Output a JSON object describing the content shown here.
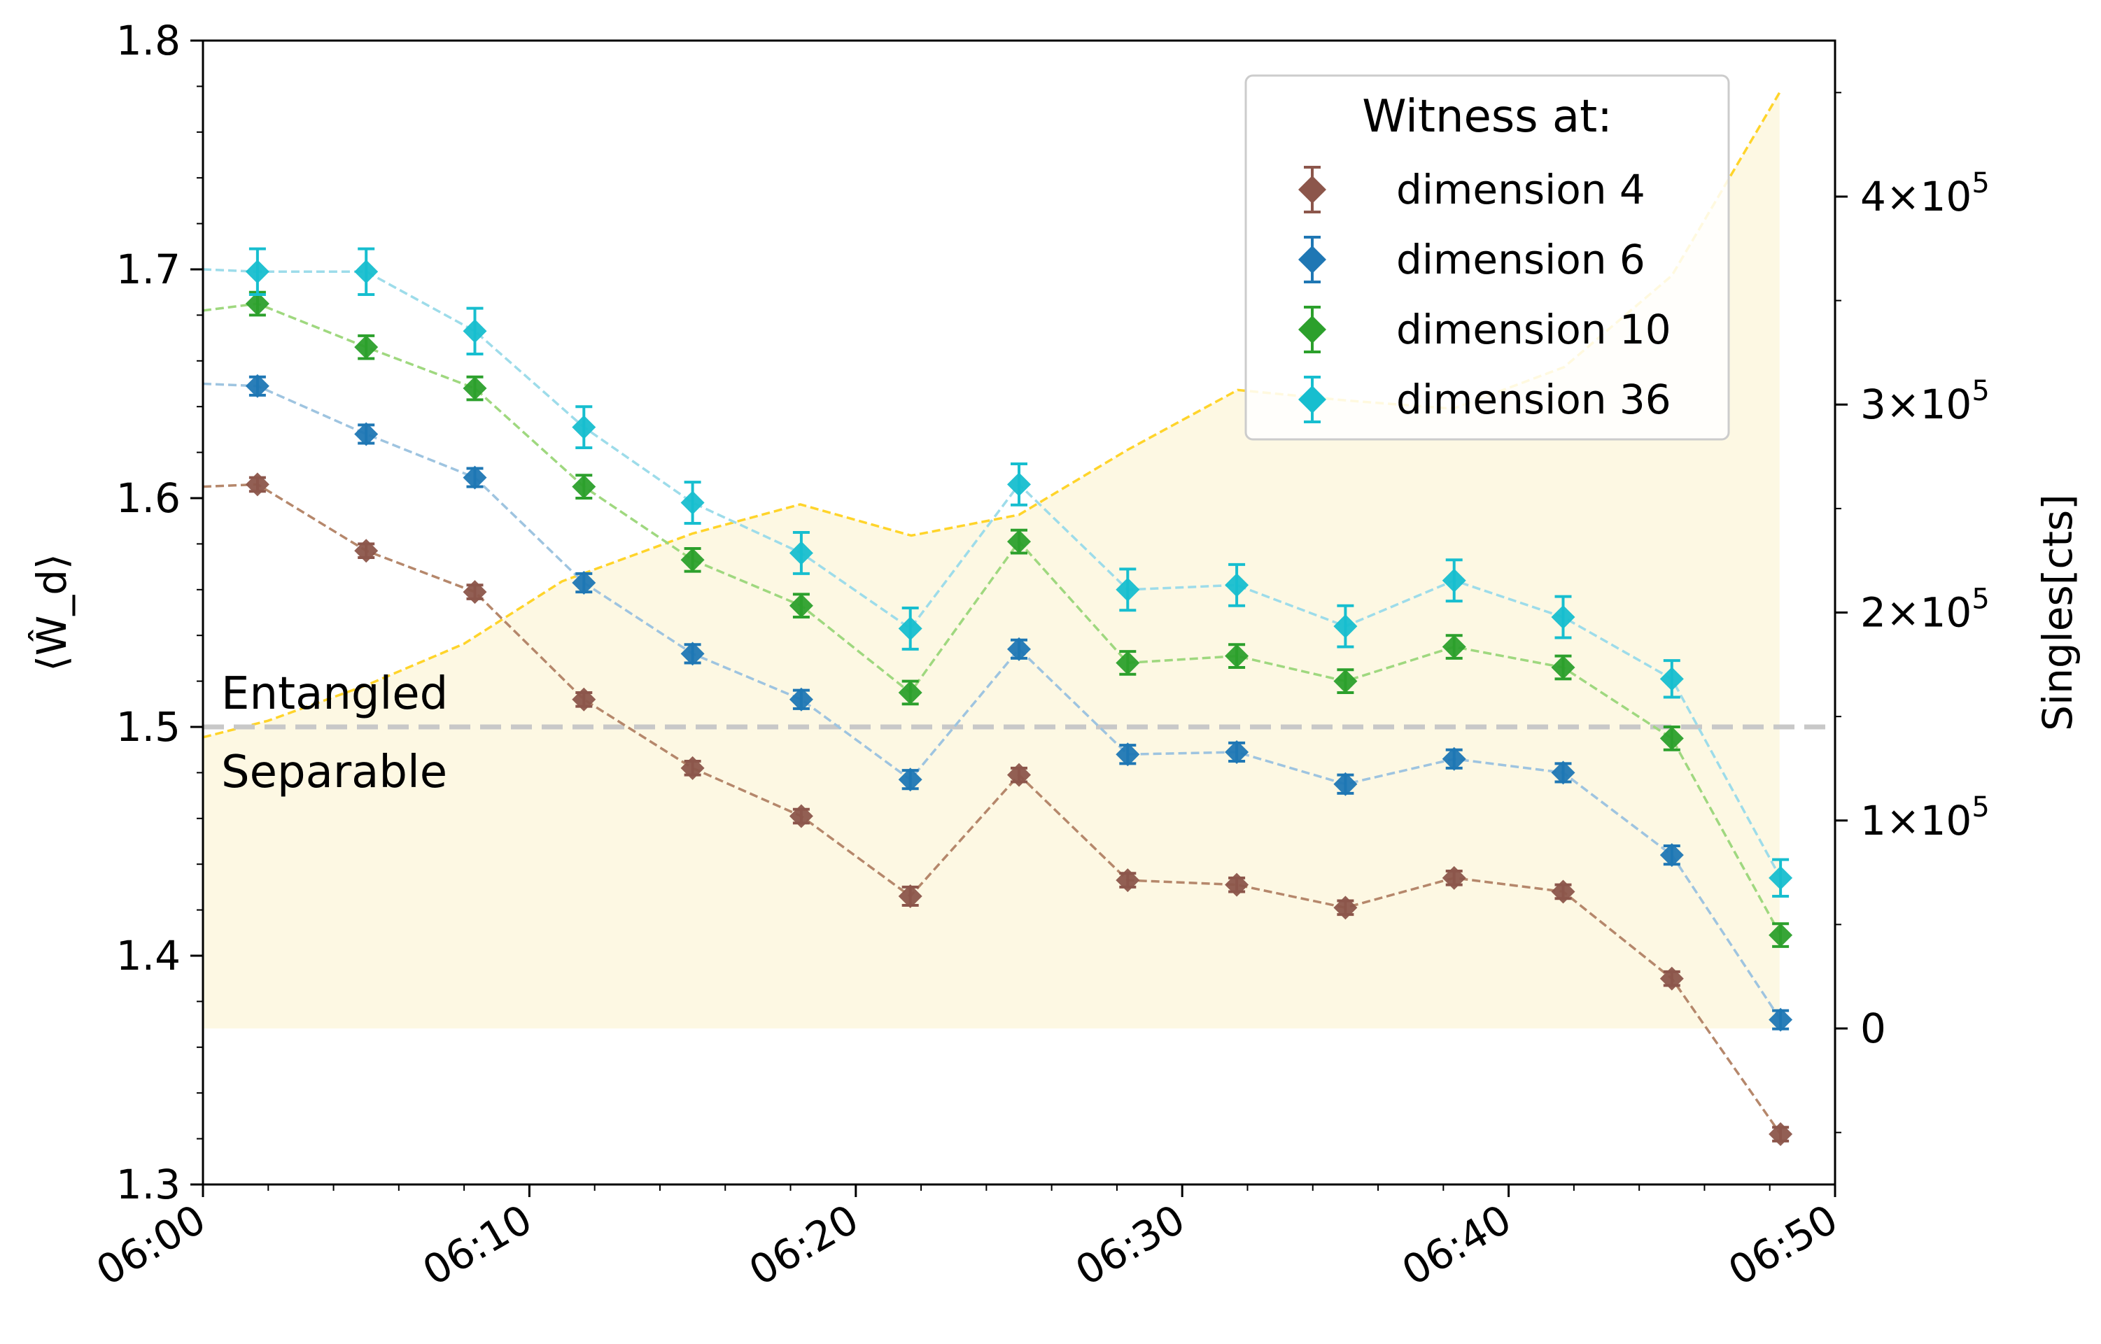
{
  "chart_data": {
    "type": "line",
    "x_ticks": [
      "06:00",
      "06:10",
      "06:20",
      "06:30",
      "06:40",
      "06:50"
    ],
    "x_range_minutes": [
      0,
      50
    ],
    "x_minutes": [
      1.67,
      5,
      8.33,
      11.67,
      15,
      18.33,
      21.67,
      25,
      28.33,
      31.67,
      35,
      38.33,
      41.67,
      45,
      48.33
    ],
    "y_left": {
      "label": "⟨Ŵ_d⟩",
      "range": [
        1.3,
        1.8
      ],
      "ticks": [
        "1.3",
        "1.4",
        "1.5",
        "1.6",
        "1.7",
        "1.8"
      ]
    },
    "y_right": {
      "label": "Singles[cts]",
      "range": [
        -75000,
        475000
      ],
      "ticks": [
        {
          "value": 0,
          "mantissa": "0",
          "exp": ""
        },
        {
          "value": 100000,
          "mantissa": "1×10",
          "exp": "5"
        },
        {
          "value": 200000,
          "mantissa": "2×10",
          "exp": "5"
        },
        {
          "value": 300000,
          "mantissa": "3×10",
          "exp": "5"
        },
        {
          "value": 400000,
          "mantissa": "4×10",
          "exp": "5"
        }
      ]
    },
    "threshold": {
      "value": 1.5,
      "label_above": "Entangled",
      "label_below": "Separable"
    },
    "legend": {
      "title": "Witness at:",
      "position": "top-right"
    },
    "series": [
      {
        "name": "dimension 4",
        "color": "#8c564b",
        "line_color": "#b5876b",
        "start_y": 1.605,
        "values": [
          1.606,
          1.577,
          1.559,
          1.512,
          1.482,
          1.461,
          1.426,
          1.479,
          1.433,
          1.431,
          1.421,
          1.434,
          1.428,
          1.39,
          1.322
        ],
        "errors": [
          0.003,
          0.003,
          0.003,
          0.003,
          0.003,
          0.003,
          0.004,
          0.003,
          0.003,
          0.003,
          0.003,
          0.003,
          0.003,
          0.003,
          0.003
        ]
      },
      {
        "name": "dimension 6",
        "color": "#1f77b4",
        "line_color": "#9ec4e0",
        "start_y": 1.65,
        "values": [
          1.649,
          1.628,
          1.609,
          1.563,
          1.532,
          1.512,
          1.477,
          1.534,
          1.488,
          1.489,
          1.475,
          1.486,
          1.48,
          1.444,
          1.372
        ],
        "errors": [
          0.004,
          0.004,
          0.004,
          0.004,
          0.004,
          0.004,
          0.004,
          0.004,
          0.004,
          0.004,
          0.004,
          0.004,
          0.004,
          0.004,
          0.004
        ]
      },
      {
        "name": "dimension 10",
        "color": "#2ca02c",
        "line_color": "#9fd87f",
        "start_y": 1.682,
        "values": [
          1.685,
          1.666,
          1.648,
          1.605,
          1.573,
          1.553,
          1.515,
          1.581,
          1.528,
          1.531,
          1.52,
          1.535,
          1.526,
          1.495,
          1.409
        ],
        "errors": [
          0.005,
          0.005,
          0.005,
          0.005,
          0.005,
          0.005,
          0.005,
          0.005,
          0.005,
          0.005,
          0.005,
          0.005,
          0.005,
          0.005,
          0.005
        ]
      },
      {
        "name": "dimension 36",
        "color": "#17becf",
        "line_color": "#9ddcea",
        "start_y": 1.7,
        "values": [
          1.699,
          1.699,
          1.673,
          1.631,
          1.598,
          1.576,
          1.543,
          1.606,
          1.56,
          1.562,
          1.544,
          1.564,
          1.548,
          1.521,
          1.434
        ],
        "errors": [
          0.01,
          0.01,
          0.01,
          0.009,
          0.009,
          0.009,
          0.009,
          0.009,
          0.009,
          0.009,
          0.009,
          0.009,
          0.009,
          0.008,
          0.008
        ]
      }
    ],
    "singles": {
      "color": "#ffd42a",
      "fill": "#fdf8e3",
      "x_minutes": [
        0,
        2,
        5,
        8,
        11,
        15,
        18.3,
        21.7,
        25,
        28.3,
        31.7,
        35,
        38.3,
        41.7,
        45,
        48.3
      ],
      "values": [
        140000,
        148000,
        165000,
        185000,
        215000,
        238000,
        252000,
        237000,
        247000,
        278000,
        307000,
        302000,
        298000,
        318000,
        362000,
        450000
      ]
    }
  }
}
